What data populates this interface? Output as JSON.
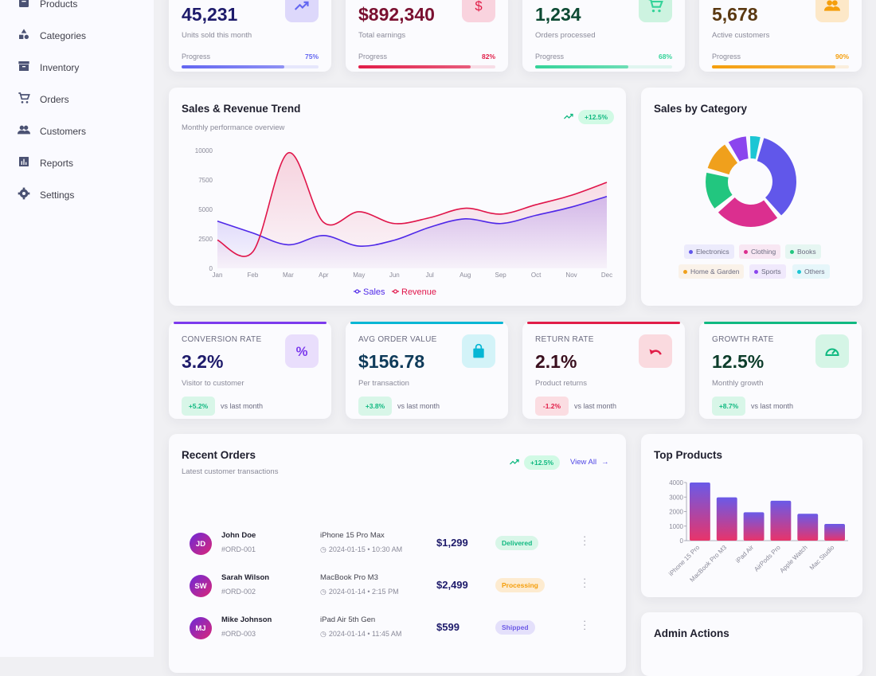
{
  "sidebar": {
    "items": [
      {
        "label": "Products",
        "icon": "box-icon"
      },
      {
        "label": "Categories",
        "icon": "shapes-icon"
      },
      {
        "label": "Inventory",
        "icon": "archive-icon"
      },
      {
        "label": "Orders",
        "icon": "cart-icon"
      },
      {
        "label": "Customers",
        "icon": "people-icon"
      },
      {
        "label": "Reports",
        "icon": "chart-icon"
      },
      {
        "label": "Settings",
        "icon": "gear-icon"
      }
    ]
  },
  "kpis": [
    {
      "value": "45,231",
      "subtitle": "Units sold this month",
      "progress_label": "Progress",
      "progress": 75,
      "progress_text": "75%",
      "color": "#6366f1",
      "icon": "trending-up-icon"
    },
    {
      "value": "$892,340",
      "subtitle": "Total earnings",
      "progress_label": "Progress",
      "progress": 82,
      "progress_text": "82%",
      "color": "#e11d48",
      "icon": "dollar-icon"
    },
    {
      "value": "1,234",
      "subtitle": "Orders processed",
      "progress_label": "Progress",
      "progress": 68,
      "progress_text": "68%",
      "color": "#34d399",
      "icon": "cart-icon"
    },
    {
      "value": "5,678",
      "subtitle": "Active customers",
      "progress_label": "Progress",
      "progress": 90,
      "progress_text": "90%",
      "color": "#f59e0b",
      "icon": "people-icon"
    }
  ],
  "trend": {
    "title": "Sales & Revenue Trend",
    "subtitle": "Monthly performance overview",
    "badge": "+12.5%"
  },
  "category": {
    "title": "Sales by Category"
  },
  "metrics": [
    {
      "label": "CONVERSION RATE",
      "value": "3.2%",
      "subtitle": "Visitor to customer",
      "change": "+5.2%",
      "vs": "vs last month",
      "color": "#7c3aed",
      "icon": "percent-icon",
      "positive": true
    },
    {
      "label": "AVG ORDER VALUE",
      "value": "$156.78",
      "subtitle": "Per transaction",
      "change": "+3.8%",
      "vs": "vs last month",
      "color": "#06b6d4",
      "icon": "shopping-bag-icon",
      "positive": true
    },
    {
      "label": "RETURN RATE",
      "value": "2.1%",
      "subtitle": "Product returns",
      "change": "-1.2%",
      "vs": "vs last month",
      "color": "#e11d48",
      "icon": "undo-icon",
      "positive": false
    },
    {
      "label": "GROWTH RATE",
      "value": "12.5%",
      "subtitle": "Monthly growth",
      "change": "+8.7%",
      "vs": "vs last month",
      "color": "#10b981",
      "icon": "speedometer-icon",
      "positive": true
    }
  ],
  "orders": {
    "title": "Recent Orders",
    "subtitle": "Latest customer transactions",
    "badge": "+12.5%",
    "view_all": "View All",
    "rows": [
      {
        "initials": "JD",
        "name": "John Doe",
        "id": "#ORD-001",
        "product": "iPhone 15 Pro Max",
        "date": "2024-01-15 • 10:30 AM",
        "amount": "$1,299",
        "status": "Delivered"
      },
      {
        "initials": "SW",
        "name": "Sarah Wilson",
        "id": "#ORD-002",
        "product": "MacBook Pro M3",
        "date": "2024-01-14 • 2:15 PM",
        "amount": "$2,499",
        "status": "Processing"
      },
      {
        "initials": "MJ",
        "name": "Mike Johnson",
        "id": "#ORD-003",
        "product": "iPad Air 5th Gen",
        "date": "2024-01-14 • 11:45 AM",
        "amount": "$599",
        "status": "Shipped"
      }
    ]
  },
  "top_products": {
    "title": "Top Products"
  },
  "admin": {
    "title": "Admin Actions"
  },
  "chart_data": [
    {
      "type": "line",
      "categories": [
        "Jan",
        "Feb",
        "Mar",
        "Apr",
        "May",
        "Jun",
        "Jul",
        "Aug",
        "Sep",
        "Oct",
        "Nov",
        "Dec"
      ],
      "series": [
        {
          "name": "Sales",
          "color": "#4f28e8",
          "values": [
            4000,
            3000,
            2000,
            2780,
            1890,
            2390,
            3490,
            4200,
            3800,
            4500,
            5200,
            6100
          ]
        },
        {
          "name": "Revenue",
          "color": "#e0154a",
          "values": [
            2400,
            1400,
            9800,
            3900,
            4800,
            3800,
            4300,
            5100,
            4600,
            5400,
            6200,
            7300
          ]
        }
      ],
      "ylim": [
        0,
        10000
      ],
      "yticks": [
        0,
        2500,
        5000,
        7500,
        10000
      ],
      "legend": "bottom"
    },
    {
      "type": "pie",
      "donut": true,
      "categories": [
        "Electronics",
        "Clothing",
        "Books",
        "Home & Garden",
        "Sports",
        "Others"
      ],
      "values": [
        35,
        25,
        15,
        12,
        8,
        5
      ],
      "colors": [
        "#6157ea",
        "#db2f8f",
        "#22c67f",
        "#f0a01c",
        "#8b45ee",
        "#1cc6d4"
      ],
      "legend": "bottom"
    },
    {
      "type": "bar",
      "categories": [
        "iPhone 15 Pro",
        "MacBook Pro M3",
        "iPad Air",
        "AirPods Pro",
        "Apple Watch",
        "Mac Studio"
      ],
      "values": [
        4000,
        2980,
        1950,
        2750,
        1850,
        1150
      ],
      "ylim": [
        0,
        4000
      ],
      "yticks": [
        0,
        1000,
        2000,
        3000,
        4000
      ]
    }
  ]
}
